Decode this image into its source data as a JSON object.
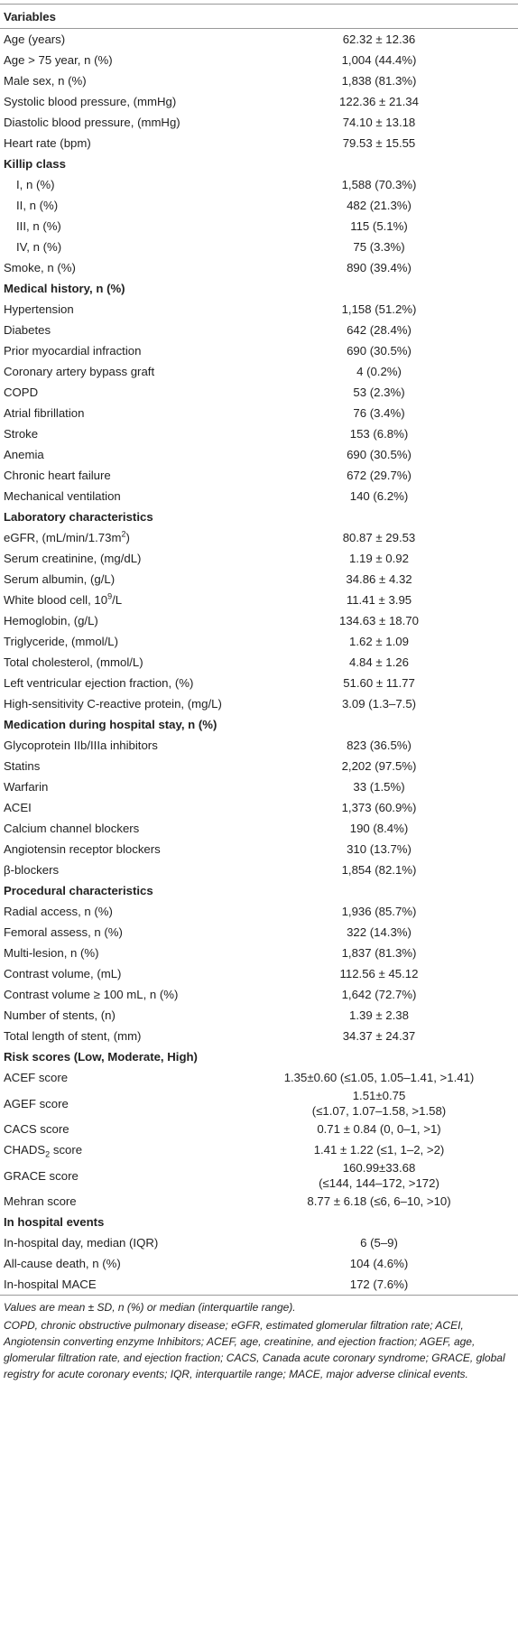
{
  "table": {
    "header": "Variables",
    "rows": [
      {
        "label": "Age (years)",
        "value": "62.32 ± 12.36"
      },
      {
        "label": "Age > 75 year, n (%)",
        "value": "1,004 (44.4%)"
      },
      {
        "label": "Male sex, n (%)",
        "value": "1,838 (81.3%)"
      },
      {
        "label": "Systolic blood pressure, (mmHg)",
        "value": "122.36 ± 21.34"
      },
      {
        "label": "Diastolic blood pressure, (mmHg)",
        "value": "74.10 ± 13.18"
      },
      {
        "label": "Heart rate (bpm)",
        "value": "79.53 ± 15.55"
      },
      {
        "label": "Killip class",
        "subrows": [
          {
            "label": "I, n (%)",
            "value": "1,588 (70.3%)"
          },
          {
            "label": "II, n (%)",
            "value": "482 (21.3%)"
          },
          {
            "label": "III, n (%)",
            "value": "115 (5.1%)"
          },
          {
            "label": "IV, n (%)",
            "value": "75 (3.3%)"
          }
        ]
      },
      {
        "label": "Smoke, n (%)",
        "value": "890 (39.4%)"
      }
    ],
    "sections": [
      {
        "title": "Medical history, n (%)",
        "rows": [
          {
            "label": "Hypertension",
            "value": "1,158 (51.2%)"
          },
          {
            "label": "Diabetes",
            "value": "642 (28.4%)"
          },
          {
            "label": "Prior myocardial infraction",
            "value": "690 (30.5%)"
          },
          {
            "label": "Coronary artery bypass graft",
            "value": "4 (0.2%)"
          },
          {
            "label": "COPD",
            "value": "53 (2.3%)"
          },
          {
            "label": "Atrial fibrillation",
            "value": "76 (3.4%)"
          },
          {
            "label": "Stroke",
            "value": "153 (6.8%)"
          },
          {
            "label": "Anemia",
            "value": "690 (30.5%)"
          },
          {
            "label": "Chronic heart failure",
            "value": "672 (29.7%)"
          },
          {
            "label": "Mechanical ventilation",
            "value": "140 (6.2%)"
          }
        ]
      },
      {
        "title": "Laboratory characteristics",
        "rows": [
          {
            "label": [
              "eGFR, (mL/min/1.73m",
              {
                "sup": "2"
              },
              ")"
            ],
            "value": "80.87 ± 29.53"
          },
          {
            "label": "Serum creatinine, (mg/dL)",
            "value": "1.19 ± 0.92"
          },
          {
            "label": "Serum albumin, (g/L)",
            "value": "34.86 ± 4.32"
          },
          {
            "label": [
              "White blood cell, 10",
              {
                "sup": "9"
              },
              "/L"
            ],
            "value": "11.41 ± 3.95"
          },
          {
            "label": "Hemoglobin, (g/L)",
            "value": "134.63 ± 18.70"
          },
          {
            "label": "Triglyceride, (mmol/L)",
            "value": "1.62 ± 1.09"
          },
          {
            "label": "Total cholesterol, (mmol/L)",
            "value": "4.84 ± 1.26"
          },
          {
            "label": "Left ventricular ejection fraction, (%)",
            "value": "51.60 ± 11.77"
          },
          {
            "label": "High-sensitivity C-reactive protein, (mg/L)",
            "value": "3.09 (1.3–7.5)"
          }
        ]
      },
      {
        "title": "Medication during hospital stay, n (%)",
        "rows": [
          {
            "label": "Glycoprotein IIb/IIIa inhibitors",
            "value": "823 (36.5%)"
          },
          {
            "label": "Statins",
            "value": "2,202 (97.5%)"
          },
          {
            "label": "Warfarin",
            "value": "33 (1.5%)"
          },
          {
            "label": "ACEI",
            "value": "1,373 (60.9%)"
          },
          {
            "label": "Calcium channel blockers",
            "value": "190 (8.4%)"
          },
          {
            "label": "Angiotensin receptor blockers",
            "value": "310 (13.7%)"
          },
          {
            "label": "β-blockers",
            "value": "1,854 (82.1%)"
          }
        ]
      },
      {
        "title": "Procedural characteristics",
        "rows": [
          {
            "label": "Radial access, n (%)",
            "value": "1,936 (85.7%)"
          },
          {
            "label": "Femoral assess, n (%)",
            "value": "322 (14.3%)"
          },
          {
            "label": "Multi-lesion, n (%)",
            "value": "1,837 (81.3%)"
          },
          {
            "label": "Contrast volume, (mL)",
            "value": "112.56 ± 45.12"
          },
          {
            "label": "Contrast volume ≥ 100 mL, n (%)",
            "value": "1,642 (72.7%)"
          },
          {
            "label": "Number of stents, (n)",
            "value": "1.39 ± 2.38"
          },
          {
            "label": "Total length of stent, (mm)",
            "value": "34.37 ± 24.37"
          }
        ]
      },
      {
        "title": "Risk scores (Low, Moderate, High)",
        "rows": [
          {
            "label": "ACEF score",
            "value": "1.35±0.60 (≤1.05, 1.05–1.41, >1.41)"
          },
          {
            "label": "AGEF score",
            "value": [
              "1.51±0.75",
              "(≤1.07, 1.07–1.58, >1.58)"
            ]
          },
          {
            "label": "CACS score",
            "value": "0.71 ± 0.84 (0, 0–1, >1)"
          },
          {
            "label": [
              "CHADS",
              {
                "sub": "2"
              },
              " score"
            ],
            "value": "1.41 ± 1.22 (≤1, 1–2, >2)"
          },
          {
            "label": "GRACE score",
            "value": [
              "160.99±33.68",
              "(≤144, 144–172, >172)"
            ]
          },
          {
            "label": "Mehran score",
            "value": "8.77 ± 6.18 (≤6, 6–10, >10)"
          }
        ]
      },
      {
        "title": "In hospital events",
        "rows": [
          {
            "label": "In-hospital day, median (IQR)",
            "value": "6 (5–9)"
          },
          {
            "label": "All-cause death, n (%)",
            "value": "104 (4.6%)"
          },
          {
            "label": "In-hospital MACE",
            "value": "172 (7.6%)"
          }
        ]
      }
    ],
    "footnotes": [
      "Values are mean ± SD, n (%) or median (interquartile range).",
      "COPD, chronic obstructive pulmonary disease; eGFR, estimated glomerular filtration rate; ACEI, Angiotensin converting enzyme Inhibitors; ACEF, age, creatinine, and ejection fraction; AGEF, age, glomerular filtration rate, and ejection fraction; CACS, Canada acute coronary syndrome; GRACE, global registry for acute coronary events; IQR, interquartile range; MACE, major adverse clinical events."
    ]
  }
}
